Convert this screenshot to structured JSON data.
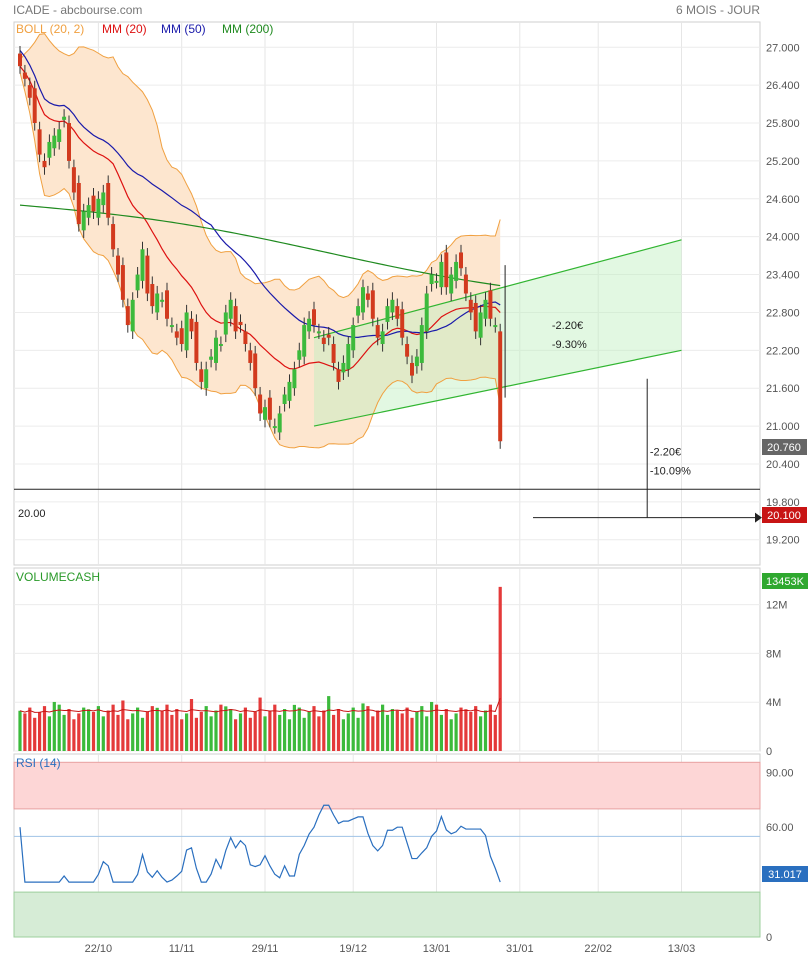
{
  "header": {
    "instrument": "ICADE - abcbourse.com",
    "period": "6 MOIS - JOUR"
  },
  "colors": {
    "boll": "#f0a040",
    "ma20": "#dd1111",
    "ma50": "#1a1aaa",
    "ma200": "#1f8a1f",
    "up": "#3cba3c",
    "down": "#d23a1e",
    "rsi": "#2a6fbf",
    "channel": "#31b531"
  },
  "legend": {
    "boll": "BOLL (20, 2)",
    "ma20": "MM (20)",
    "ma50": "MM (50)",
    "ma200": "MM (200)"
  },
  "chart_data": [
    {
      "type": "candlestick",
      "panel": "price",
      "x_ticks": [
        "22/10",
        "11/11",
        "29/11",
        "19/12",
        "13/01",
        "31/01",
        "22/02",
        "13/03"
      ],
      "y_ticks": [
        "27.000",
        "26.400",
        "25.800",
        "25.200",
        "24.600",
        "24.000",
        "23.400",
        "22.800",
        "22.200",
        "21.600",
        "21.000",
        "20.400",
        "19.800",
        "19.200"
      ],
      "ylim": [
        18.8,
        27.4
      ],
      "last_price": "20.760",
      "support_price": "20.100",
      "support_label": "20.00",
      "annotations": [
        {
          "text": "-2.20€",
          "day": 111,
          "price": 22.6
        },
        {
          "text": "-9.30%",
          "day": 111,
          "price": 22.3
        },
        {
          "text": "-2.20€",
          "day": 131,
          "price": 20.6
        },
        {
          "text": "-10.09%",
          "day": 131,
          "price": 20.3
        }
      ],
      "closes": [
        26.7,
        26.5,
        26.2,
        25.8,
        25.3,
        25.1,
        25.5,
        25.6,
        25.7,
        25.9,
        25.2,
        24.7,
        24.2,
        24.4,
        24.5,
        24.4,
        24.6,
        24.7,
        24.3,
        23.8,
        23.4,
        23.0,
        22.6,
        23.0,
        23.4,
        23.8,
        23.1,
        22.9,
        23.1,
        23.0,
        22.7,
        22.6,
        22.4,
        22.3,
        22.8,
        22.5,
        22.0,
        21.7,
        21.9,
        22.1,
        22.4,
        22.3,
        22.8,
        23.0,
        22.5,
        22.6,
        22.3,
        22.0,
        21.6,
        21.2,
        21.3,
        21.1,
        21.0,
        21.2,
        21.5,
        21.7,
        21.9,
        22.2,
        22.6,
        22.7,
        22.6,
        22.5,
        22.3,
        22.4,
        22.0,
        21.7,
        22.0,
        22.3,
        22.6,
        22.9,
        23.2,
        23.0,
        22.7,
        22.4,
        22.5,
        22.9,
        23.0,
        22.7,
        22.4,
        22.1,
        21.8,
        22.1,
        22.6,
        23.1,
        23.4,
        23.3,
        23.6,
        23.2,
        23.4,
        23.6,
        23.5,
        23.1,
        22.8,
        22.5,
        22.8,
        23.0,
        22.7,
        22.6,
        20.76
      ],
      "closes_start_day": 0
    },
    {
      "type": "bar",
      "panel": "volume",
      "title": "VOLUMECASH",
      "y_ticks": [
        "12M",
        "8M",
        "4M",
        "0"
      ],
      "ylim": [
        0,
        15000000
      ],
      "last_value": "13453K"
    },
    {
      "type": "line",
      "panel": "rsi",
      "title": "RSI (14)",
      "y_ticks": [
        "90.00",
        "60.00",
        "0"
      ],
      "ylim": [
        0,
        100
      ],
      "last_value": "31.017"
    }
  ]
}
